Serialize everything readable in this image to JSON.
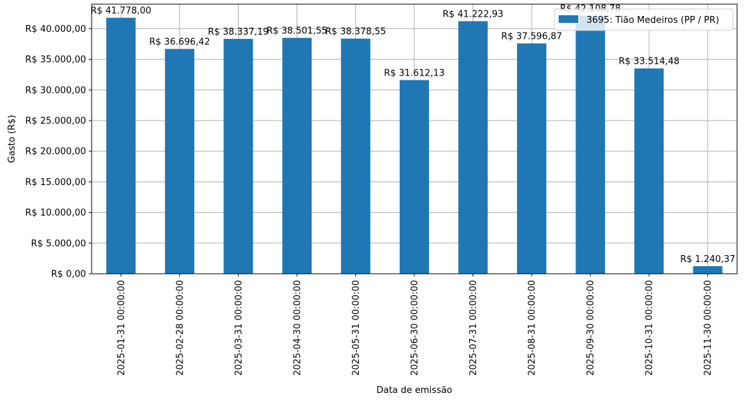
{
  "chart_data": {
    "type": "bar",
    "xlabel": "Data de emissão",
    "ylabel": "Gasto (R$)",
    "ylim": [
      0,
      44000
    ],
    "yticks": [
      0,
      5000,
      10000,
      15000,
      20000,
      25000,
      30000,
      35000,
      40000
    ],
    "ytick_labels": [
      "R$ 0,00",
      "R$ 5.000,00",
      "R$ 10.000,00",
      "R$ 15.000,00",
      "R$ 20.000,00",
      "R$ 25.000,00",
      "R$ 30.000,00",
      "R$ 35.000,00",
      "R$ 40.000,00"
    ],
    "grid": true,
    "legend_position": "top-right",
    "categories": [
      "2025-01-31 00:00:00",
      "2025-02-28 00:00:00",
      "2025-03-31 00:00:00",
      "2025-04-30 00:00:00",
      "2025-05-31 00:00:00",
      "2025-06-30 00:00:00",
      "2025-07-31 00:00:00",
      "2025-08-31 00:00:00",
      "2025-09-30 00:00:00",
      "2025-10-31 00:00:00",
      "2025-11-30 00:00:00"
    ],
    "series": [
      {
        "name": "3695: Tião Medeiros (PP / PR)",
        "color": "#1f77b4",
        "values": [
          41778.0,
          36696.42,
          38337.19,
          38501.55,
          38378.55,
          31612.13,
          41222.93,
          37596.87,
          42108.78,
          33514.48,
          1240.37
        ],
        "labels": [
          "R$ 41.778,00",
          "R$ 36.696,42",
          "R$ 38.337,19",
          "R$ 38.501,55",
          "R$ 38.378,55",
          "R$ 31.612,13",
          "R$ 41.222,93",
          "R$ 37.596,87",
          "R$ 42.108,78",
          "R$ 33.514,48",
          "R$ 1.240,37"
        ]
      }
    ]
  }
}
